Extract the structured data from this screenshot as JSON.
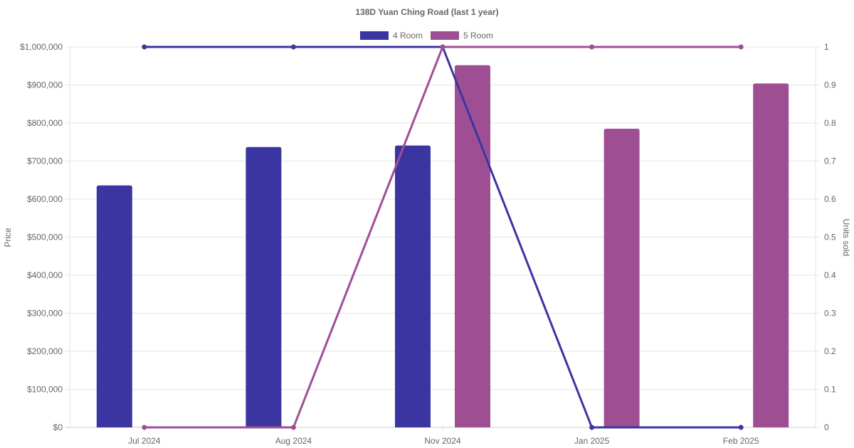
{
  "chart_data": {
    "type": "bar",
    "title": "138D Yuan Ching Road (last 1 year)",
    "categories": [
      "Jul 2024",
      "Aug 2024",
      "Nov 2024",
      "Jan 2025",
      "Feb 2025"
    ],
    "series": [
      {
        "name": "4 Room",
        "color": "#3a35a1",
        "price_values": [
          636000,
          737000,
          741000,
          null,
          null
        ],
        "units_sold": [
          1,
          1,
          1,
          0,
          0
        ]
      },
      {
        "name": "5 Room",
        "color": "#9e4f94",
        "price_values": [
          null,
          null,
          952000,
          785000,
          904000
        ],
        "units_sold": [
          0,
          0,
          1,
          1,
          1
        ]
      }
    ],
    "y_left": {
      "label": "Price",
      "ylim": [
        0,
        1000000
      ],
      "ticks": [
        0,
        100000,
        200000,
        300000,
        400000,
        500000,
        600000,
        700000,
        800000,
        900000,
        1000000
      ],
      "tick_labels": [
        "$0",
        "$100,000",
        "$200,000",
        "$300,000",
        "$400,000",
        "$500,000",
        "$600,000",
        "$700,000",
        "$800,000",
        "$900,000",
        "$1,000,000"
      ]
    },
    "y_right": {
      "label": "Units sold",
      "ylim": [
        0,
        1
      ],
      "ticks": [
        0,
        0.1,
        0.2,
        0.3,
        0.4,
        0.5,
        0.6,
        0.7,
        0.8,
        0.9,
        1
      ],
      "tick_labels": [
        "0",
        "0.1",
        "0.2",
        "0.3",
        "0.4",
        "0.5",
        "0.6",
        "0.7",
        "0.8",
        "0.9",
        "1"
      ]
    },
    "grid": true,
    "legend_position": "top"
  }
}
